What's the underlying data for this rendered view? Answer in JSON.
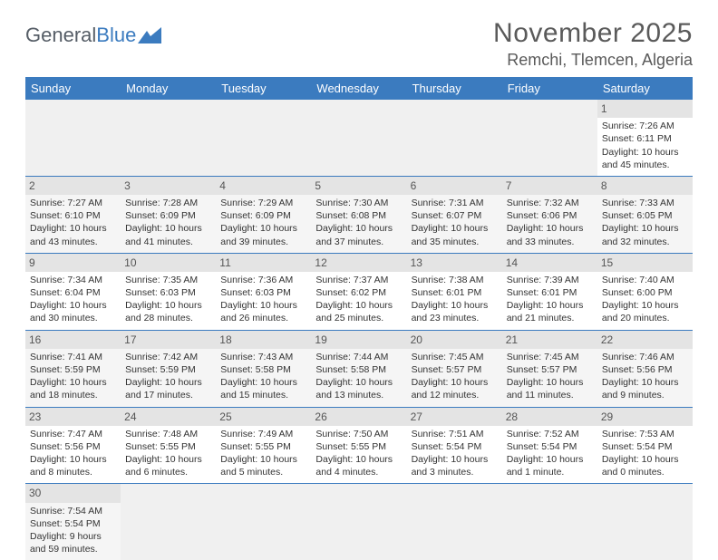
{
  "logo": {
    "text1": "General",
    "text2": "Blue"
  },
  "title": "November 2025",
  "location": "Remchi, Tlemcen, Algeria",
  "day_headers": [
    "Sunday",
    "Monday",
    "Tuesday",
    "Wednesday",
    "Thursday",
    "Friday",
    "Saturday"
  ],
  "colors": {
    "header_bg": "#3b7bbf",
    "header_text": "#ffffff",
    "row_border": "#3b7bbf",
    "daynum_bg": "#e4e4e4",
    "empty_bg": "#f0f0f0"
  },
  "weeks": [
    [
      null,
      null,
      null,
      null,
      null,
      null,
      {
        "n": "1",
        "sunrise": "7:26 AM",
        "sunset": "6:11 PM",
        "daylight": "10 hours and 45 minutes."
      }
    ],
    [
      {
        "n": "2",
        "sunrise": "7:27 AM",
        "sunset": "6:10 PM",
        "daylight": "10 hours and 43 minutes."
      },
      {
        "n": "3",
        "sunrise": "7:28 AM",
        "sunset": "6:09 PM",
        "daylight": "10 hours and 41 minutes."
      },
      {
        "n": "4",
        "sunrise": "7:29 AM",
        "sunset": "6:09 PM",
        "daylight": "10 hours and 39 minutes."
      },
      {
        "n": "5",
        "sunrise": "7:30 AM",
        "sunset": "6:08 PM",
        "daylight": "10 hours and 37 minutes."
      },
      {
        "n": "6",
        "sunrise": "7:31 AM",
        "sunset": "6:07 PM",
        "daylight": "10 hours and 35 minutes."
      },
      {
        "n": "7",
        "sunrise": "7:32 AM",
        "sunset": "6:06 PM",
        "daylight": "10 hours and 33 minutes."
      },
      {
        "n": "8",
        "sunrise": "7:33 AM",
        "sunset": "6:05 PM",
        "daylight": "10 hours and 32 minutes."
      }
    ],
    [
      {
        "n": "9",
        "sunrise": "7:34 AM",
        "sunset": "6:04 PM",
        "daylight": "10 hours and 30 minutes."
      },
      {
        "n": "10",
        "sunrise": "7:35 AM",
        "sunset": "6:03 PM",
        "daylight": "10 hours and 28 minutes."
      },
      {
        "n": "11",
        "sunrise": "7:36 AM",
        "sunset": "6:03 PM",
        "daylight": "10 hours and 26 minutes."
      },
      {
        "n": "12",
        "sunrise": "7:37 AM",
        "sunset": "6:02 PM",
        "daylight": "10 hours and 25 minutes."
      },
      {
        "n": "13",
        "sunrise": "7:38 AM",
        "sunset": "6:01 PM",
        "daylight": "10 hours and 23 minutes."
      },
      {
        "n": "14",
        "sunrise": "7:39 AM",
        "sunset": "6:01 PM",
        "daylight": "10 hours and 21 minutes."
      },
      {
        "n": "15",
        "sunrise": "7:40 AM",
        "sunset": "6:00 PM",
        "daylight": "10 hours and 20 minutes."
      }
    ],
    [
      {
        "n": "16",
        "sunrise": "7:41 AM",
        "sunset": "5:59 PM",
        "daylight": "10 hours and 18 minutes."
      },
      {
        "n": "17",
        "sunrise": "7:42 AM",
        "sunset": "5:59 PM",
        "daylight": "10 hours and 17 minutes."
      },
      {
        "n": "18",
        "sunrise": "7:43 AM",
        "sunset": "5:58 PM",
        "daylight": "10 hours and 15 minutes."
      },
      {
        "n": "19",
        "sunrise": "7:44 AM",
        "sunset": "5:58 PM",
        "daylight": "10 hours and 13 minutes."
      },
      {
        "n": "20",
        "sunrise": "7:45 AM",
        "sunset": "5:57 PM",
        "daylight": "10 hours and 12 minutes."
      },
      {
        "n": "21",
        "sunrise": "7:45 AM",
        "sunset": "5:57 PM",
        "daylight": "10 hours and 11 minutes."
      },
      {
        "n": "22",
        "sunrise": "7:46 AM",
        "sunset": "5:56 PM",
        "daylight": "10 hours and 9 minutes."
      }
    ],
    [
      {
        "n": "23",
        "sunrise": "7:47 AM",
        "sunset": "5:56 PM",
        "daylight": "10 hours and 8 minutes."
      },
      {
        "n": "24",
        "sunrise": "7:48 AM",
        "sunset": "5:55 PM",
        "daylight": "10 hours and 6 minutes."
      },
      {
        "n": "25",
        "sunrise": "7:49 AM",
        "sunset": "5:55 PM",
        "daylight": "10 hours and 5 minutes."
      },
      {
        "n": "26",
        "sunrise": "7:50 AM",
        "sunset": "5:55 PM",
        "daylight": "10 hours and 4 minutes."
      },
      {
        "n": "27",
        "sunrise": "7:51 AM",
        "sunset": "5:54 PM",
        "daylight": "10 hours and 3 minutes."
      },
      {
        "n": "28",
        "sunrise": "7:52 AM",
        "sunset": "5:54 PM",
        "daylight": "10 hours and 1 minute."
      },
      {
        "n": "29",
        "sunrise": "7:53 AM",
        "sunset": "5:54 PM",
        "daylight": "10 hours and 0 minutes."
      }
    ],
    [
      {
        "n": "30",
        "sunrise": "7:54 AM",
        "sunset": "5:54 PM",
        "daylight": "9 hours and 59 minutes."
      },
      null,
      null,
      null,
      null,
      null,
      null
    ]
  ],
  "labels": {
    "sunrise": "Sunrise: ",
    "sunset": "Sunset: ",
    "daylight": "Daylight: "
  }
}
